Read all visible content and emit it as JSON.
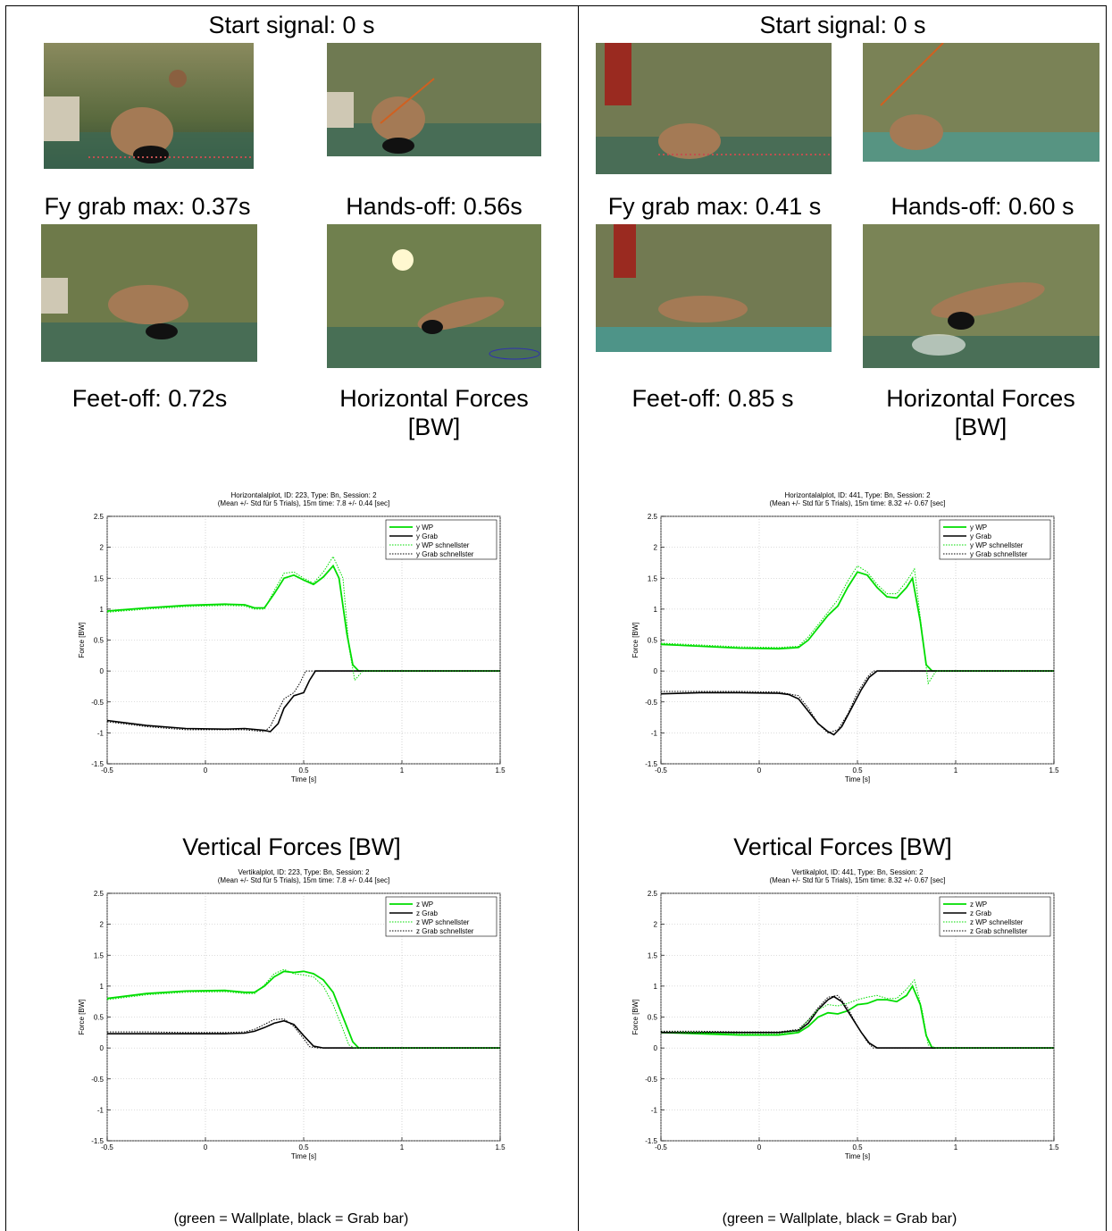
{
  "panels": [
    {
      "start_label": "Start signal: 0 s",
      "grab_label": "Fy grab max: 0.37s",
      "handsoff_label": "Hands-off: 0.56s",
      "feetoff_label": "Feet-off: 0.72s",
      "horiz_heading_1": "Horizontal Forces",
      "horiz_heading_2": "[BW]",
      "vert_heading": "Vertical Forces [BW]",
      "footnote": "(green = Wallplate, black = Grab bar)"
    },
    {
      "start_label": "Start signal: 0 s",
      "grab_label": "Fy grab max: 0.41 s",
      "handsoff_label": "Hands-off: 0.60 s",
      "feetoff_label": "Feet-off: 0.85 s",
      "horiz_heading_1": "Horizontal Forces",
      "horiz_heading_2": "[BW]",
      "vert_heading": "Vertical Forces [BW]",
      "footnote": "(green = Wallplate, black = Grab bar)"
    }
  ],
  "colors": {
    "wallplate": "#00dd00",
    "grab": "#000000"
  },
  "chart_data": [
    {
      "type": "line",
      "title": "Horizontalalplot, ID: 223, Type: Bn, Session: 2",
      "subtitle": "(Mean +/- Std für 5 Trials), 15m time: 7.8 +/- 0.44 [sec]",
      "xlabel": "Time [s]",
      "ylabel": "Force [BW]",
      "xlim": [
        -0.5,
        1.5
      ],
      "ylim": [
        -1.5,
        2.5
      ],
      "xticks": [
        "-0.5",
        "0",
        "0.5",
        "1",
        "1.5"
      ],
      "yticks": [
        "-1.5",
        "-1",
        "-0.5",
        "0",
        "0.5",
        "1",
        "1.5",
        "2",
        "2.5"
      ],
      "grid": true,
      "legend_position": "top-right",
      "legend": [
        "y WP",
        "y Grab",
        "y WP schnellster",
        "y Grab schnellster"
      ],
      "series": [
        {
          "name": "y WP",
          "x": [
            -0.5,
            -0.3,
            -0.1,
            0.1,
            0.2,
            0.25,
            0.3,
            0.35,
            0.4,
            0.45,
            0.5,
            0.55,
            0.6,
            0.65,
            0.68,
            0.72,
            0.75,
            0.78,
            1.0,
            1.5
          ],
          "y": [
            0.97,
            1.02,
            1.06,
            1.08,
            1.07,
            1.02,
            1.02,
            1.25,
            1.5,
            1.55,
            1.47,
            1.4,
            1.52,
            1.7,
            1.5,
            0.6,
            0.1,
            0.0,
            0.0,
            0.0
          ]
        },
        {
          "name": "y Grab",
          "x": [
            -0.5,
            -0.3,
            -0.1,
            0.1,
            0.2,
            0.3,
            0.33,
            0.37,
            0.4,
            0.45,
            0.5,
            0.53,
            0.56,
            0.6,
            1.0,
            1.5
          ],
          "y": [
            -0.8,
            -0.88,
            -0.93,
            -0.94,
            -0.93,
            -0.96,
            -0.98,
            -0.85,
            -0.6,
            -0.4,
            -0.35,
            -0.15,
            0.0,
            0.0,
            0.0,
            0.0
          ]
        },
        {
          "name": "y WP schnellster",
          "x": [
            -0.5,
            -0.3,
            -0.1,
            0.1,
            0.2,
            0.25,
            0.3,
            0.35,
            0.4,
            0.45,
            0.5,
            0.55,
            0.6,
            0.65,
            0.7,
            0.73,
            0.76,
            0.8,
            1.0,
            1.5
          ],
          "y": [
            0.95,
            1.0,
            1.04,
            1.06,
            1.05,
            1.0,
            1.0,
            1.3,
            1.58,
            1.6,
            1.5,
            1.42,
            1.6,
            1.85,
            1.5,
            0.4,
            -0.15,
            0.0,
            0.0,
            0.0
          ]
        },
        {
          "name": "y Grab schnellster",
          "x": [
            -0.5,
            -0.3,
            -0.1,
            0.1,
            0.2,
            0.3,
            0.33,
            0.36,
            0.4,
            0.45,
            0.48,
            0.51,
            0.55,
            1.0,
            1.5
          ],
          "y": [
            -0.82,
            -0.9,
            -0.95,
            -0.95,
            -0.95,
            -0.98,
            -0.9,
            -0.7,
            -0.45,
            -0.35,
            -0.2,
            0.0,
            0.0,
            0.0,
            0.0
          ]
        }
      ]
    },
    {
      "type": "line",
      "title": "Horizontalalplot, ID: 441, Type: Bn, Session: 2",
      "subtitle": "(Mean +/- Std für 5 Trials), 15m time: 8.32 +/- 0.67 [sec]",
      "xlabel": "Time [s]",
      "ylabel": "Force [BW]",
      "xlim": [
        -0.5,
        1.5
      ],
      "ylim": [
        -1.5,
        2.5
      ],
      "xticks": [
        "-0.5",
        "0",
        "0.5",
        "1",
        "1.5"
      ],
      "yticks": [
        "-1.5",
        "-1",
        "-0.5",
        "0",
        "0.5",
        "1",
        "1.5",
        "2",
        "2.5"
      ],
      "grid": true,
      "legend_position": "top-right",
      "legend": [
        "y WP",
        "y Grab",
        "y WP schnellster",
        "y Grab schnellster"
      ],
      "series": [
        {
          "name": "y WP",
          "x": [
            -0.5,
            -0.3,
            -0.1,
            0.1,
            0.2,
            0.25,
            0.3,
            0.35,
            0.4,
            0.45,
            0.5,
            0.55,
            0.6,
            0.65,
            0.7,
            0.75,
            0.78,
            0.82,
            0.85,
            0.88,
            1.0,
            1.5
          ],
          "y": [
            0.43,
            0.4,
            0.37,
            0.36,
            0.38,
            0.5,
            0.7,
            0.9,
            1.05,
            1.35,
            1.6,
            1.55,
            1.35,
            1.2,
            1.18,
            1.35,
            1.5,
            0.8,
            0.1,
            0.0,
            0.0,
            0.0
          ]
        },
        {
          "name": "y Grab",
          "x": [
            -0.5,
            -0.3,
            -0.1,
            0.1,
            0.15,
            0.2,
            0.25,
            0.3,
            0.35,
            0.38,
            0.42,
            0.47,
            0.52,
            0.56,
            0.6,
            1.0,
            1.5
          ],
          "y": [
            -0.37,
            -0.35,
            -0.35,
            -0.36,
            -0.38,
            -0.45,
            -0.65,
            -0.85,
            -0.98,
            -1.03,
            -0.9,
            -0.6,
            -0.3,
            -0.1,
            0.0,
            0.0,
            0.0
          ]
        },
        {
          "name": "y WP schnellster",
          "x": [
            -0.5,
            -0.3,
            -0.1,
            0.1,
            0.2,
            0.25,
            0.3,
            0.35,
            0.4,
            0.45,
            0.5,
            0.55,
            0.6,
            0.65,
            0.7,
            0.75,
            0.79,
            0.83,
            0.86,
            0.9,
            1.0,
            1.5
          ],
          "y": [
            0.45,
            0.42,
            0.39,
            0.38,
            0.4,
            0.55,
            0.75,
            0.95,
            1.15,
            1.45,
            1.7,
            1.6,
            1.4,
            1.25,
            1.25,
            1.45,
            1.65,
            0.6,
            -0.2,
            0.0,
            0.0,
            0.0
          ]
        },
        {
          "name": "y Grab schnellster",
          "x": [
            -0.5,
            -0.3,
            -0.1,
            0.1,
            0.2,
            0.25,
            0.3,
            0.35,
            0.4,
            0.45,
            0.5,
            0.55,
            0.58,
            1.0,
            1.5
          ],
          "y": [
            -0.33,
            -0.33,
            -0.33,
            -0.34,
            -0.4,
            -0.6,
            -0.85,
            -1.0,
            -0.95,
            -0.7,
            -0.35,
            -0.1,
            0.0,
            0.0,
            0.0
          ]
        }
      ]
    },
    {
      "type": "line",
      "title": "Vertikalplot, ID: 223, Type: Bn, Session: 2",
      "subtitle": "(Mean +/- Std für 5 Trials), 15m time: 7.8 +/- 0.44 [sec]",
      "xlabel": "Time [s]",
      "ylabel": "Force [BW]",
      "xlim": [
        -0.5,
        1.5
      ],
      "ylim": [
        -1.5,
        2.5
      ],
      "xticks": [
        "-0.5",
        "0",
        "0.5",
        "1",
        "1.5"
      ],
      "yticks": [
        "-1.5",
        "-1",
        "-0.5",
        "0",
        "0.5",
        "1",
        "1.5",
        "2",
        "2.5"
      ],
      "grid": true,
      "legend_position": "top-right",
      "legend": [
        "z WP",
        "z Grab",
        "z WP schnellster",
        "z Grab schnellster"
      ],
      "series": [
        {
          "name": "z WP",
          "x": [
            -0.5,
            -0.3,
            -0.1,
            0.1,
            0.2,
            0.25,
            0.3,
            0.35,
            0.4,
            0.45,
            0.5,
            0.55,
            0.6,
            0.65,
            0.7,
            0.75,
            0.78,
            1.0,
            1.5
          ],
          "y": [
            0.8,
            0.88,
            0.92,
            0.93,
            0.9,
            0.9,
            1.0,
            1.15,
            1.24,
            1.22,
            1.24,
            1.2,
            1.1,
            0.9,
            0.5,
            0.1,
            0.0,
            0.0,
            0.0
          ]
        },
        {
          "name": "z Grab",
          "x": [
            -0.5,
            -0.3,
            -0.1,
            0.1,
            0.2,
            0.25,
            0.3,
            0.35,
            0.4,
            0.45,
            0.5,
            0.55,
            0.6,
            1.0,
            1.5
          ],
          "y": [
            0.23,
            0.23,
            0.23,
            0.23,
            0.24,
            0.27,
            0.33,
            0.4,
            0.44,
            0.38,
            0.2,
            0.03,
            0.0,
            0.0,
            0.0
          ]
        },
        {
          "name": "z WP schnellster",
          "x": [
            -0.5,
            -0.3,
            -0.1,
            0.1,
            0.2,
            0.25,
            0.3,
            0.35,
            0.4,
            0.45,
            0.5,
            0.55,
            0.6,
            0.65,
            0.7,
            0.73,
            0.76,
            1.0,
            1.5
          ],
          "y": [
            0.78,
            0.86,
            0.9,
            0.91,
            0.88,
            0.88,
            1.02,
            1.2,
            1.27,
            1.2,
            1.18,
            1.15,
            1.0,
            0.7,
            0.3,
            0.05,
            0.0,
            0.0,
            0.0
          ]
        },
        {
          "name": "z Grab schnellster",
          "x": [
            -0.5,
            -0.3,
            -0.1,
            0.1,
            0.2,
            0.25,
            0.3,
            0.35,
            0.4,
            0.45,
            0.5,
            0.53,
            0.57,
            1.0,
            1.5
          ],
          "y": [
            0.26,
            0.26,
            0.25,
            0.25,
            0.26,
            0.3,
            0.38,
            0.46,
            0.47,
            0.35,
            0.15,
            0.02,
            0.0,
            0.0,
            0.0
          ]
        }
      ]
    },
    {
      "type": "line",
      "title": "Vertikalplot, ID: 441, Type: Bn, Session: 2",
      "subtitle": "(Mean +/- Std für 5 Trials), 15m time: 8.32 +/- 0.67 [sec]",
      "xlabel": "Time [s]",
      "ylabel": "Force [BW]",
      "xlim": [
        -0.5,
        1.5
      ],
      "ylim": [
        -1.5,
        2.5
      ],
      "xticks": [
        "-0.5",
        "0",
        "0.5",
        "1",
        "1.5"
      ],
      "yticks": [
        "-1.5",
        "-1",
        "-0.5",
        "0",
        "0.5",
        "1",
        "1.5",
        "2",
        "2.5"
      ],
      "grid": true,
      "legend_position": "top-right",
      "legend": [
        "z WP",
        "z Grab",
        "z WP schnellster",
        "z Grab schnellster"
      ],
      "series": [
        {
          "name": "z WP",
          "x": [
            -0.5,
            -0.3,
            -0.1,
            0.1,
            0.2,
            0.25,
            0.3,
            0.35,
            0.4,
            0.45,
            0.5,
            0.55,
            0.6,
            0.65,
            0.7,
            0.75,
            0.78,
            0.82,
            0.85,
            0.88,
            1.0,
            1.5
          ],
          "y": [
            0.25,
            0.23,
            0.21,
            0.21,
            0.25,
            0.35,
            0.5,
            0.57,
            0.55,
            0.6,
            0.7,
            0.72,
            0.78,
            0.78,
            0.75,
            0.85,
            1.0,
            0.7,
            0.2,
            0.0,
            0.0,
            0.0
          ]
        },
        {
          "name": "z Grab",
          "x": [
            -0.5,
            -0.3,
            -0.1,
            0.1,
            0.2,
            0.25,
            0.3,
            0.35,
            0.38,
            0.42,
            0.47,
            0.52,
            0.56,
            0.6,
            1.0,
            1.5
          ],
          "y": [
            0.25,
            0.25,
            0.25,
            0.25,
            0.28,
            0.4,
            0.62,
            0.78,
            0.83,
            0.75,
            0.5,
            0.25,
            0.08,
            0.0,
            0.0,
            0.0
          ]
        },
        {
          "name": "z WP schnellster",
          "x": [
            -0.5,
            -0.3,
            -0.1,
            0.1,
            0.2,
            0.25,
            0.3,
            0.35,
            0.4,
            0.45,
            0.5,
            0.55,
            0.6,
            0.65,
            0.7,
            0.75,
            0.79,
            0.83,
            0.86,
            0.9,
            1.0,
            1.5
          ],
          "y": [
            0.27,
            0.25,
            0.23,
            0.23,
            0.28,
            0.45,
            0.62,
            0.7,
            0.68,
            0.72,
            0.78,
            0.82,
            0.85,
            0.8,
            0.8,
            0.95,
            1.1,
            0.6,
            0.05,
            0.0,
            0.0,
            0.0
          ]
        },
        {
          "name": "z Grab schnellster",
          "x": [
            -0.5,
            -0.3,
            -0.1,
            0.1,
            0.2,
            0.25,
            0.3,
            0.35,
            0.4,
            0.45,
            0.5,
            0.55,
            0.58,
            1.0,
            1.5
          ],
          "y": [
            0.27,
            0.27,
            0.26,
            0.26,
            0.3,
            0.45,
            0.65,
            0.82,
            0.85,
            0.65,
            0.35,
            0.1,
            0.0,
            0.0,
            0.0
          ]
        }
      ]
    }
  ]
}
